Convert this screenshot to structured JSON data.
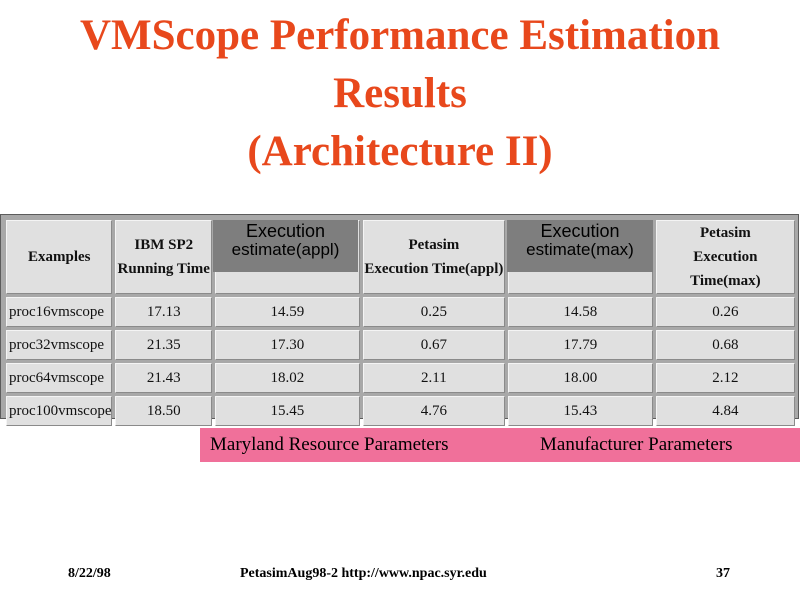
{
  "slide": {
    "title_lines": [
      "VMScope Performance Estimation",
      "Results",
      "(Architecture II)"
    ]
  },
  "table": {
    "headers": [
      [
        "Examples"
      ],
      [
        "IBM SP2",
        "Running Time"
      ],
      [
        "",
        ""
      ],
      [
        "Petasim",
        "Execution Time(appl)"
      ],
      [
        "",
        ""
      ],
      [
        "Petasim",
        "Execution Time(max)"
      ]
    ],
    "rows": [
      [
        "proc16vmscope",
        "17.13",
        "14.59",
        "0.25",
        "14.58",
        "0.26"
      ],
      [
        "proc32vmscope",
        "21.35",
        "17.30",
        "0.67",
        "17.79",
        "0.68"
      ],
      [
        "proc64vmscope",
        "21.43",
        "18.02",
        "2.11",
        "18.00",
        "2.12"
      ],
      [
        "proc100vmscope",
        "18.50",
        "15.45",
        "4.76",
        "15.43",
        "4.84"
      ]
    ]
  },
  "overlays": {
    "appl": [
      "Execution",
      "estimate(appl)"
    ],
    "max": [
      "Execution",
      "estimate(max)"
    ]
  },
  "parameter_labels": {
    "maryland": "Maryland Resource Parameters",
    "manufacturer": "Manufacturer Parameters"
  },
  "footer": {
    "date": "8/22/98",
    "center": "PetasimAug98-2  http://www.npac.syr.edu",
    "page": "37"
  },
  "colors": {
    "title": "#e8481c",
    "pink_bar": "#f0709a",
    "table_bg": "#a8a8a8",
    "cell_bg": "#e0e0e0",
    "overlay_bg": "#7e7e7e"
  }
}
